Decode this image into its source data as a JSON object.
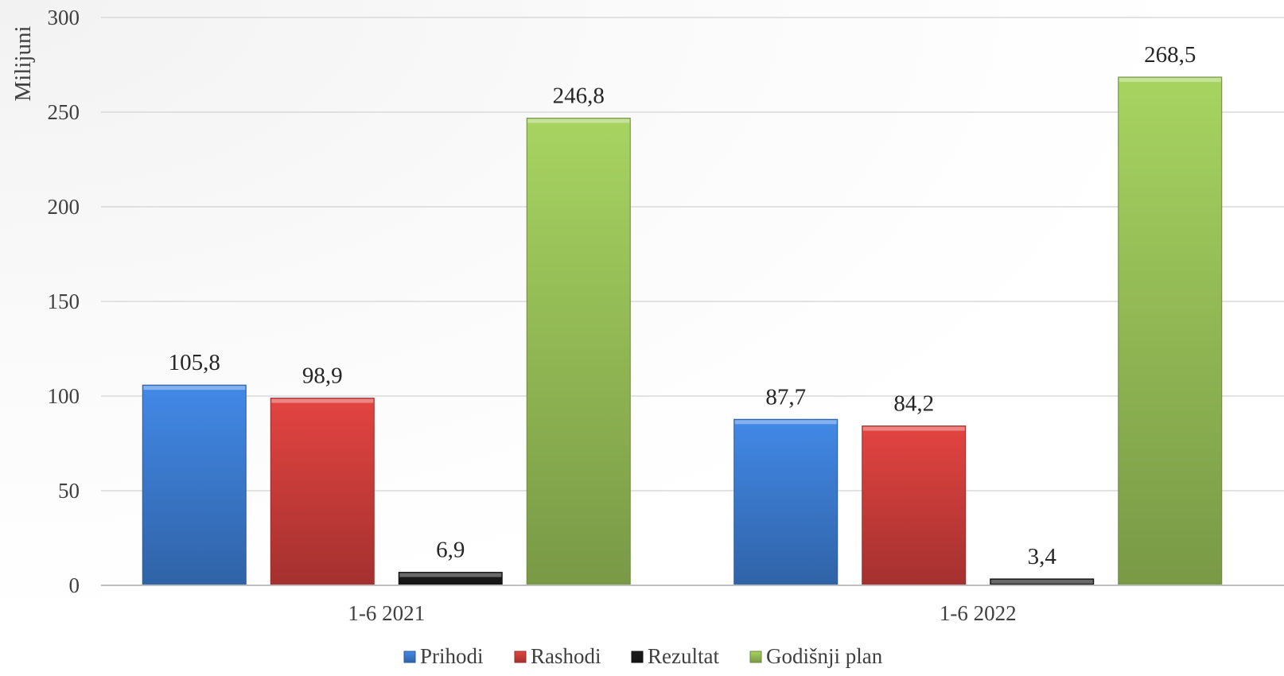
{
  "chart_data": {
    "type": "bar",
    "categories": [
      "1-6 2021",
      "1-6 2022"
    ],
    "series": [
      {
        "name": "Prihodi",
        "values": [
          105.8,
          87.7
        ],
        "labels": [
          "105,8",
          "87,7"
        ],
        "color": "#3d7fd6"
      },
      {
        "name": "Rashodi",
        "values": [
          98.9,
          84.2
        ],
        "labels": [
          "98,9",
          "84,2"
        ],
        "color": "#d23f3c"
      },
      {
        "name": "Rezultat",
        "values": [
          6.9,
          3.4
        ],
        "labels": [
          "6,9",
          "3,4"
        ],
        "color": "#1a1a1a"
      },
      {
        "name": "Godišnji plan",
        "values": [
          246.8,
          268.5
        ],
        "labels": [
          "246,8",
          "268,5"
        ],
        "color": "#9bc45a"
      }
    ],
    "title": "",
    "xlabel": "",
    "ylabel": "Milijuni",
    "ylim": [
      0,
      300
    ],
    "yticks": [
      "0",
      "50",
      "100",
      "150",
      "200",
      "250",
      "300"
    ],
    "ytick_values": [
      0,
      50,
      100,
      150,
      200,
      250,
      300
    ],
    "grid": true,
    "legend_position": "bottom"
  }
}
